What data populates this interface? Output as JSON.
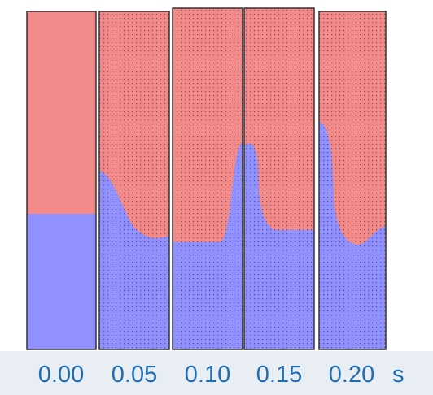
{
  "panels": [
    {
      "label": "0.00"
    },
    {
      "label": "0.05"
    },
    {
      "label": "0.10"
    },
    {
      "label": "0.15"
    },
    {
      "label": "0.20"
    }
  ],
  "unit": "s"
}
